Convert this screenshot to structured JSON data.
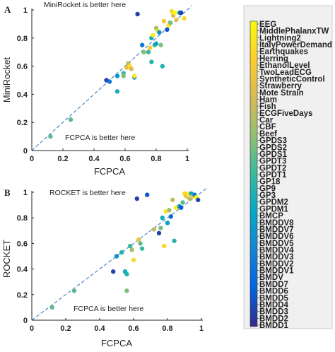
{
  "chart_data": [
    {
      "panel": "A",
      "type": "scatter",
      "xlabel": "FCPCA",
      "ylabel": "MiniRocket",
      "xlim": [
        0,
        1
      ],
      "ylim": [
        0,
        1
      ],
      "xticks": [
        "0",
        "0.2",
        "0.4",
        "0.6",
        "0.8",
        "1"
      ],
      "yticks": [
        "0",
        "0.2",
        "0.4",
        "0.6",
        "0.8",
        "1"
      ],
      "annotations": [
        "MiniRocket is better here",
        "FCPCA is better here"
      ],
      "diagonal": true,
      "points": [
        {
          "x": 0.12,
          "y": 0.1,
          "c": 0.55
        },
        {
          "x": 0.25,
          "y": 0.22,
          "c": 0.55
        },
        {
          "x": 0.48,
          "y": 0.5,
          "c": 0.05
        },
        {
          "x": 0.5,
          "y": 0.49,
          "c": 0.2
        },
        {
          "x": 0.55,
          "y": 0.53,
          "c": 0.3
        },
        {
          "x": 0.55,
          "y": 0.42,
          "c": 0.4
        },
        {
          "x": 0.59,
          "y": 0.55,
          "c": 0.5
        },
        {
          "x": 0.59,
          "y": 0.53,
          "c": 0.6
        },
        {
          "x": 0.61,
          "y": 0.59,
          "c": 0.8
        },
        {
          "x": 0.62,
          "y": 0.62,
          "c": 0.7
        },
        {
          "x": 0.63,
          "y": 0.6,
          "c": 0.9
        },
        {
          "x": 0.64,
          "y": 0.58,
          "c": 0.75
        },
        {
          "x": 0.66,
          "y": 0.52,
          "c": 0.3
        },
        {
          "x": 0.66,
          "y": 0.53,
          "c": 0.95
        },
        {
          "x": 0.68,
          "y": 0.97,
          "c": 0.05
        },
        {
          "x": 0.71,
          "y": 0.75,
          "c": 0.2
        },
        {
          "x": 0.72,
          "y": 0.7,
          "c": 0.6
        },
        {
          "x": 0.75,
          "y": 0.7,
          "c": 0.5
        },
        {
          "x": 0.76,
          "y": 0.73,
          "c": 0.85
        },
        {
          "x": 0.77,
          "y": 0.8,
          "c": 0.4
        },
        {
          "x": 0.77,
          "y": 0.63,
          "c": 0.45
        },
        {
          "x": 0.78,
          "y": 0.82,
          "c": 0.95
        },
        {
          "x": 0.79,
          "y": 0.75,
          "c": 0.5
        },
        {
          "x": 0.8,
          "y": 0.76,
          "c": 0.35
        },
        {
          "x": 0.8,
          "y": 0.87,
          "c": 0.65
        },
        {
          "x": 0.81,
          "y": 0.85,
          "c": 0.9
        },
        {
          "x": 0.82,
          "y": 0.84,
          "c": 0.3
        },
        {
          "x": 0.83,
          "y": 0.75,
          "c": 0.6
        },
        {
          "x": 0.84,
          "y": 0.6,
          "c": 0.45
        },
        {
          "x": 0.85,
          "y": 0.92,
          "c": 0.85
        },
        {
          "x": 0.87,
          "y": 0.86,
          "c": 0.1
        },
        {
          "x": 0.88,
          "y": 0.89,
          "c": 0.95
        },
        {
          "x": 0.89,
          "y": 0.91,
          "c": 0.6
        },
        {
          "x": 0.9,
          "y": 0.99,
          "c": 0.9
        },
        {
          "x": 0.91,
          "y": 0.96,
          "c": 0.75
        },
        {
          "x": 0.92,
          "y": 0.98,
          "c": 1.0
        },
        {
          "x": 0.93,
          "y": 0.93,
          "c": 0.8
        },
        {
          "x": 0.95,
          "y": 0.98,
          "c": 0.3
        },
        {
          "x": 0.96,
          "y": 0.98,
          "c": 0.05
        },
        {
          "x": 0.98,
          "y": 0.94,
          "c": 0.9
        }
      ]
    },
    {
      "panel": "B",
      "type": "scatter",
      "xlabel": "FCPCA",
      "ylabel": "ROCKET",
      "xlim": [
        0,
        1
      ],
      "ylim": [
        0,
        1
      ],
      "xticks": [
        "0",
        "0.2",
        "0.4",
        "0.6",
        "0.8",
        "1"
      ],
      "yticks": [
        "0",
        "0.2",
        "0.4",
        "0.6",
        "0.8",
        "1"
      ],
      "annotations": [
        "ROCKET is better here",
        "FCPCA is better here"
      ],
      "diagonal": true,
      "points": [
        {
          "x": 0.12,
          "y": 0.1,
          "c": 0.55
        },
        {
          "x": 0.25,
          "y": 0.23,
          "c": 0.55
        },
        {
          "x": 0.48,
          "y": 0.38,
          "c": 0.05
        },
        {
          "x": 0.5,
          "y": 0.5,
          "c": 0.3
        },
        {
          "x": 0.53,
          "y": 0.53,
          "c": 0.45
        },
        {
          "x": 0.55,
          "y": 0.38,
          "c": 0.4
        },
        {
          "x": 0.56,
          "y": 0.36,
          "c": 0.45
        },
        {
          "x": 0.56,
          "y": 0.23,
          "c": 0.6
        },
        {
          "x": 0.58,
          "y": 0.58,
          "c": 0.5
        },
        {
          "x": 0.59,
          "y": 0.55,
          "c": 0.65
        },
        {
          "x": 0.6,
          "y": 0.47,
          "c": 0.9
        },
        {
          "x": 0.62,
          "y": 0.95,
          "c": 0.05
        },
        {
          "x": 0.63,
          "y": 0.63,
          "c": 0.8
        },
        {
          "x": 0.64,
          "y": 0.6,
          "c": 0.55
        },
        {
          "x": 0.65,
          "y": 0.56,
          "c": 0.5
        },
        {
          "x": 0.68,
          "y": 0.98,
          "c": 0.1
        },
        {
          "x": 0.72,
          "y": 0.71,
          "c": 0.7
        },
        {
          "x": 0.75,
          "y": 0.68,
          "c": 0.05
        },
        {
          "x": 0.76,
          "y": 0.72,
          "c": 0.6
        },
        {
          "x": 0.77,
          "y": 0.8,
          "c": 0.4
        },
        {
          "x": 0.78,
          "y": 0.58,
          "c": 0.9
        },
        {
          "x": 0.79,
          "y": 0.85,
          "c": 0.95
        },
        {
          "x": 0.8,
          "y": 0.76,
          "c": 0.35
        },
        {
          "x": 0.81,
          "y": 0.86,
          "c": 0.65
        },
        {
          "x": 0.82,
          "y": 0.81,
          "c": 0.15
        },
        {
          "x": 0.83,
          "y": 0.94,
          "c": 0.7
        },
        {
          "x": 0.84,
          "y": 0.62,
          "c": 0.45
        },
        {
          "x": 0.85,
          "y": 0.88,
          "c": 0.95
        },
        {
          "x": 0.87,
          "y": 0.89,
          "c": 0.3
        },
        {
          "x": 0.88,
          "y": 0.88,
          "c": 0.1
        },
        {
          "x": 0.89,
          "y": 0.92,
          "c": 0.55
        },
        {
          "x": 0.9,
          "y": 0.99,
          "c": 0.9
        },
        {
          "x": 0.91,
          "y": 0.97,
          "c": 0.8
        },
        {
          "x": 0.92,
          "y": 0.99,
          "c": 0.95
        },
        {
          "x": 0.93,
          "y": 0.95,
          "c": 0.7
        },
        {
          "x": 0.94,
          "y": 0.99,
          "c": 0.35
        },
        {
          "x": 0.95,
          "y": 0.97,
          "c": 0.85
        },
        {
          "x": 0.96,
          "y": 0.98,
          "c": 0.2
        },
        {
          "x": 0.97,
          "y": 0.96,
          "c": 1.0
        },
        {
          "x": 0.98,
          "y": 0.94,
          "c": 0.05
        }
      ]
    }
  ],
  "panels": {
    "a": {
      "letter": "A",
      "ann_top": "MiniRocket is better here",
      "ann_bottom": "FCPCA is better here",
      "xlabel": "FCPCA",
      "ylabel": "MiniRocket"
    },
    "b": {
      "letter": "B",
      "ann_top": "ROCKET is better here",
      "ann_bottom": "FCPCA is better here",
      "xlabel": "FCPCA",
      "ylabel": "ROCKET"
    }
  },
  "ticks": [
    "0",
    "0.2",
    "0.4",
    "0.6",
    "0.8",
    "1"
  ],
  "colorbar": {
    "colormap": "parula",
    "colors": [
      "#352a87",
      "#0363e1",
      "#1485d4",
      "#06a7c6",
      "#38b99e",
      "#92bf73",
      "#d9ba56",
      "#fcce2e",
      "#f9fb0e"
    ],
    "labels": [
      "EEG",
      "MiddlePhalanxTW",
      "Lightning2",
      "ItalyPowerDemand",
      "Earthquakes",
      "Herring",
      "EthanolLevel",
      "TwoLeadECG",
      "SyntheticControl",
      "Strawberry",
      "Mote Strain",
      "Ham",
      "Fish",
      "ECGFiveDays",
      "Car",
      "CBF",
      "Beef",
      "GPDS3",
      "GPDS2",
      "GPDS1",
      "GPDT3",
      "GPDT2",
      "GPDT1",
      "GP18",
      "GP9",
      "GP3",
      "GPDM2",
      "GPDM1",
      "BMCP",
      "BMDDV8",
      "BMDDV7",
      "BMDDV6",
      "BMDDV5",
      "BMDDV4",
      "BMDDV3",
      "BMDDV2",
      "BMDDV1",
      "BMDV",
      "BMDD7",
      "BMDD6",
      "BMDD5",
      "BMDD4",
      "BMDD3",
      "BMDD2",
      "BMDD1"
    ]
  },
  "style": {
    "diagonal_color": "#3b7bbf",
    "axis_color": "#222222"
  }
}
